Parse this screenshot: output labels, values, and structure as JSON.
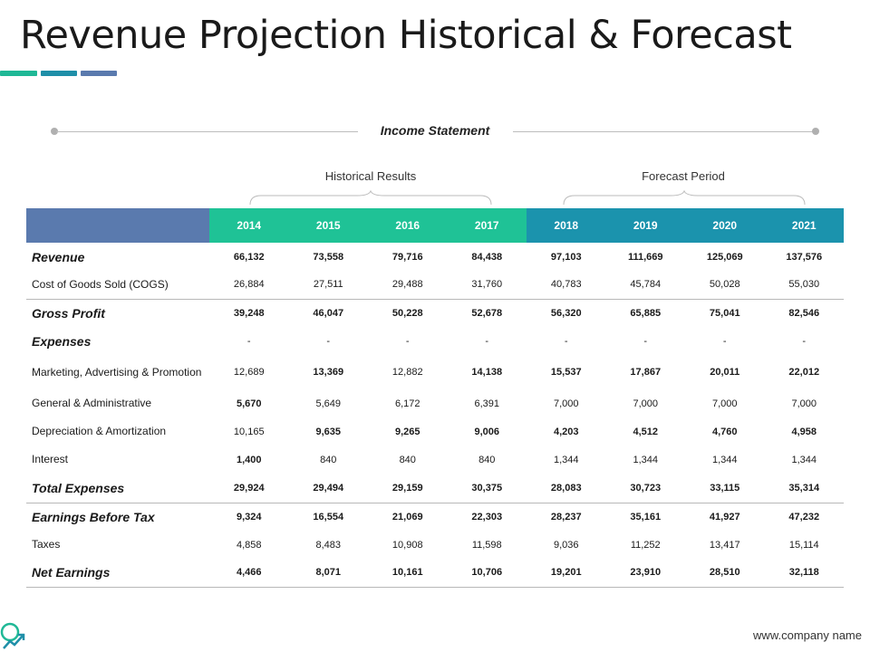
{
  "title": "Revenue Projection Historical & Forecast",
  "income_statement_label": "Income Statement",
  "periods": {
    "historical": "Historical Results",
    "forecast": "Forecast Period"
  },
  "years": [
    "2014",
    "2015",
    "2016",
    "2017",
    "2018",
    "2019",
    "2020",
    "2021"
  ],
  "colors": {
    "historical_header": "#1fc296",
    "forecast_header": "#1b93ad",
    "label_header": "#5a7aae"
  },
  "rows": [
    {
      "label": "Revenue",
      "style": "big",
      "values": [
        "66,132",
        "73,558",
        "79,716",
        "84,438",
        "97,103",
        "111,669",
        "125,069",
        "137,576"
      ],
      "bold": [
        1,
        1,
        1,
        1,
        1,
        1,
        1,
        1
      ],
      "height": 31
    },
    {
      "label": "Cost of Goods Sold (COGS)",
      "style": "small",
      "values": [
        "26,884",
        "27,511",
        "29,488",
        "31,760",
        "40,783",
        "45,784",
        "50,028",
        "55,030"
      ],
      "bold": [
        0,
        0,
        0,
        0,
        0,
        0,
        0,
        0
      ],
      "height": 31,
      "sep": true
    },
    {
      "label": "Gross Profit",
      "style": "big",
      "values": [
        "39,248",
        "46,047",
        "50,228",
        "52,678",
        "56,320",
        "65,885",
        "75,041",
        "82,546"
      ],
      "bold": [
        1,
        1,
        1,
        1,
        1,
        1,
        1,
        1
      ],
      "height": 32
    },
    {
      "label": "Expenses",
      "style": "big",
      "values": [
        "-",
        "-",
        "-",
        "-",
        "-",
        "-",
        "-",
        "-"
      ],
      "bold": [
        0,
        0,
        0,
        0,
        0,
        0,
        0,
        0
      ],
      "height": 30
    },
    {
      "label": "Marketing, Advertising & Promotion",
      "style": "small",
      "values": [
        "12,689",
        "13,369",
        "12,882",
        "14,138",
        "15,537",
        "17,867",
        "20,011",
        "22,012"
      ],
      "bold": [
        0,
        1,
        0,
        1,
        1,
        1,
        1,
        1
      ],
      "height": 38
    },
    {
      "label": "General & Administrative",
      "style": "small",
      "values": [
        "5,670",
        "5,649",
        "6,172",
        "6,391",
        "7,000",
        "7,000",
        "7,000",
        "7,000"
      ],
      "bold": [
        1,
        0,
        0,
        0,
        0,
        0,
        0,
        0
      ],
      "height": 31
    },
    {
      "label": "Depreciation & Amortization",
      "style": "small",
      "values": [
        "10,165",
        "9,635",
        "9,265",
        "9,006",
        "4,203",
        "4,512",
        "4,760",
        "4,958"
      ],
      "bold": [
        0,
        1,
        1,
        1,
        1,
        1,
        1,
        1
      ],
      "height": 31
    },
    {
      "label": "Interest",
      "style": "small",
      "values": [
        "1,400",
        "840",
        "840",
        "840",
        "1,344",
        "1,344",
        "1,344",
        "1,344"
      ],
      "bold": [
        1,
        0,
        0,
        0,
        0,
        0,
        0,
        0
      ],
      "height": 31
    },
    {
      "label": "Total Expenses",
      "style": "big",
      "values": [
        "29,924",
        "29,494",
        "29,159",
        "30,375",
        "28,083",
        "30,723",
        "33,115",
        "35,314"
      ],
      "bold": [
        1,
        1,
        1,
        1,
        1,
        1,
        1,
        1
      ],
      "height": 32,
      "sep": true
    },
    {
      "label": "Earnings Before Tax",
      "style": "big",
      "values": [
        "9,324",
        "16,554",
        "21,069",
        "22,303",
        "28,237",
        "35,161",
        "41,927",
        "47,232"
      ],
      "bold": [
        1,
        1,
        1,
        1,
        1,
        1,
        1,
        1
      ],
      "height": 31
    },
    {
      "label": "Taxes",
      "style": "small",
      "values": [
        "4,858",
        "8,483",
        "10,908",
        "11,598",
        "9,036",
        "11,252",
        "13,417",
        "15,114"
      ],
      "bold": [
        0,
        0,
        0,
        0,
        0,
        0,
        0,
        0
      ],
      "height": 31
    },
    {
      "label": "Net Earnings",
      "style": "big",
      "values": [
        "4,466",
        "8,071",
        "10,161",
        "10,706",
        "19,201",
        "23,910",
        "28,510",
        "32,118"
      ],
      "bold": [
        1,
        1,
        1,
        1,
        1,
        1,
        1,
        1
      ],
      "height": 31,
      "sep": true
    }
  ],
  "footer": "www.company name",
  "logo_icon": "growth-chart-logo-icon"
}
